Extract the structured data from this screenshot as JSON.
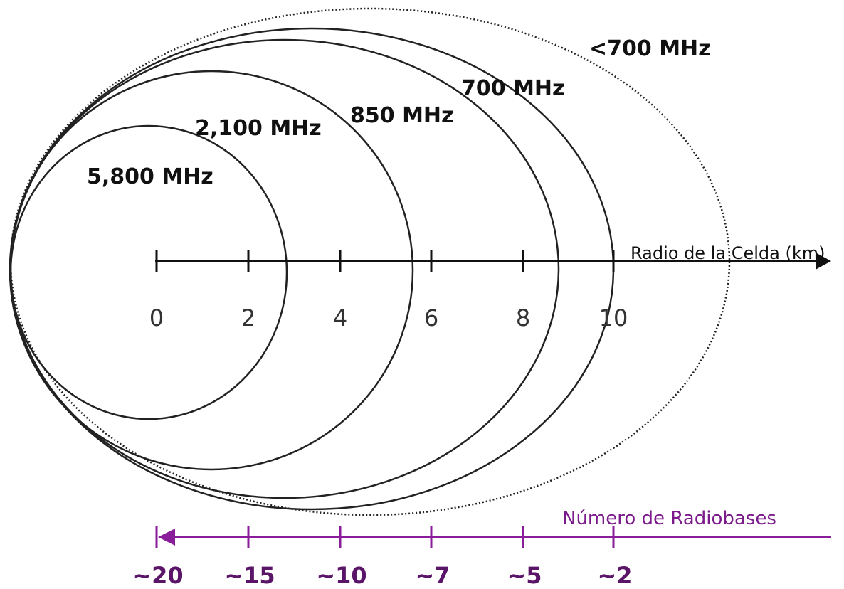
{
  "frequencies": [
    "<700 MHz",
    "700 MHz",
    "850 MHz",
    "2,100 MHz",
    "5,800 MHz"
  ],
  "radius_axis": {
    "title": "Radio de la Celda (km)",
    "ticks": [
      0,
      2,
      4,
      6,
      8,
      10
    ]
  },
  "radiobases_axis": {
    "title": "Número de Radiobases",
    "ticks": [
      "~20",
      "~15",
      "~10",
      "~7",
      "~5",
      "~2"
    ]
  }
}
